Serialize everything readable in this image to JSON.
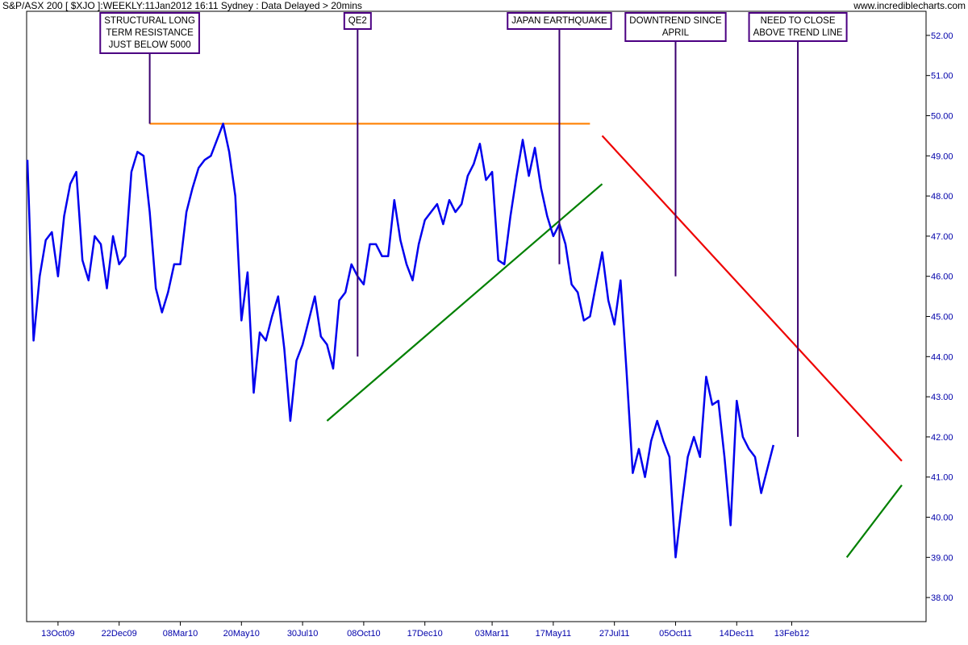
{
  "header": {
    "title": "S&P/ASX 200 [ $XJO ]:WEEKLY:11Jan2012 16:11 Sydney : Data Delayed > 20mins",
    "site": "www.incrediblecharts.com"
  },
  "colors": {
    "price": "#0000ee",
    "resistance": "#ff8000",
    "uptrend": "#008000",
    "downtrend": "#ee0000",
    "annotation_border": "#4b0082",
    "annotation_line": "#3a006f",
    "axis": "#000000",
    "tick_label": "#0000aa"
  },
  "chart_data": {
    "type": "line",
    "series": [
      {
        "values": [
          48.9,
          44.4,
          46.0,
          46.9,
          47.1,
          46.0,
          47.5,
          48.3,
          48.6,
          46.4,
          45.9,
          47.0,
          46.8,
          45.7,
          47.0,
          46.3,
          46.5,
          48.6,
          49.1,
          49.0,
          47.6,
          45.7,
          45.1,
          45.6,
          46.3,
          46.3,
          47.6,
          48.2,
          48.7,
          48.9,
          49.0,
          49.4,
          49.8,
          49.1,
          48.0,
          44.9,
          46.1,
          43.1,
          44.6,
          44.4,
          45.0,
          45.5,
          44.2,
          42.4,
          43.9,
          44.3,
          44.9,
          45.5,
          44.5,
          44.3,
          43.7,
          45.4,
          45.6,
          46.3,
          46.0,
          45.8,
          46.8,
          46.8,
          46.5,
          46.5,
          47.9,
          46.9,
          46.3,
          45.9,
          46.8,
          47.4,
          47.6,
          47.8,
          47.3,
          47.9,
          47.6,
          47.8,
          48.5,
          48.8,
          49.3,
          48.4,
          48.6,
          46.4,
          46.3,
          47.5,
          48.5,
          49.4,
          48.5,
          49.2,
          48.2,
          47.5,
          47.0,
          47.3,
          46.8,
          45.8,
          45.6,
          44.9,
          45.0,
          45.8,
          46.6,
          45.4,
          44.8,
          45.9,
          43.6,
          41.1,
          41.7,
          41.0,
          41.9,
          42.4,
          41.9,
          41.5,
          39.0,
          40.3,
          41.5,
          42.0,
          41.5,
          43.5,
          42.8,
          42.9,
          41.5,
          39.8,
          42.9,
          42.0,
          41.7,
          41.5,
          40.6,
          41.2,
          41.8
        ]
      }
    ],
    "x_tick_labels": [
      "13Oct09",
      "22Dec09",
      "08Mar10",
      "20May10",
      "30Jul10",
      "08Oct10",
      "17Dec10",
      "03Mar11",
      "17May11",
      "27Jul11",
      "05Oct11",
      "14Dec11",
      "13Feb12"
    ],
    "x_tick_index": [
      5,
      15,
      25,
      35,
      45,
      55,
      65,
      76,
      86,
      96,
      106,
      116,
      125
    ],
    "y_tick_labels": [
      "38.00",
      "39.00",
      "40.00",
      "41.00",
      "42.00",
      "43.00",
      "44.00",
      "45.00",
      "46.00",
      "47.00",
      "48.00",
      "49.00",
      "50.00",
      "51.00",
      "52.00"
    ],
    "ylim": [
      37.4,
      52.6
    ],
    "trendlines": [
      {
        "kind": "resistance",
        "from": [
          20,
          49.8
        ],
        "to": [
          92,
          49.8
        ]
      },
      {
        "kind": "uptrend",
        "from": [
          49,
          42.4
        ],
        "to": [
          94,
          48.3
        ]
      },
      {
        "kind": "downtrend",
        "from": [
          94,
          49.5
        ],
        "to": [
          143,
          41.4
        ]
      },
      {
        "kind": "uptrend",
        "from": [
          134,
          39.0
        ],
        "to": [
          143,
          40.8
        ]
      }
    ],
    "annotations": [
      {
        "lines": [
          "STRUCTURAL LONG",
          "TERM RESISTANCE",
          "JUST BELOW 5000"
        ],
        "points_to": [
          20,
          49.8
        ]
      },
      {
        "lines": [
          "QE2"
        ],
        "points_to": [
          54,
          44.0
        ]
      },
      {
        "lines": [
          "JAPAN EARTHQUAKE"
        ],
        "points_to": [
          87,
          46.3
        ]
      },
      {
        "lines": [
          "DOWNTREND SINCE",
          "APRIL"
        ],
        "points_to": [
          106,
          46.0
        ]
      },
      {
        "lines": [
          "NEED TO CLOSE",
          "ABOVE TREND LINE"
        ],
        "points_to": [
          126,
          42.0
        ]
      }
    ],
    "grid": false,
    "legend": "none"
  }
}
